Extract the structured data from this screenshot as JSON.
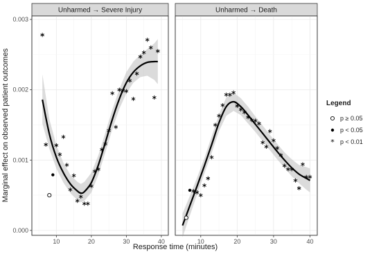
{
  "chart_data": {
    "type": "scatter",
    "xlabel": "Response time (minutes)",
    "ylabel": "Marginal effect on observed patient outcomes",
    "xlim": [
      3,
      42
    ],
    "ylim": [
      -7e-05,
      0.00305
    ],
    "x_ticks": [
      10,
      20,
      30,
      40
    ],
    "y_ticks": [
      0,
      0.001,
      0.002,
      0.003
    ],
    "y_tick_labels": [
      "0.000",
      "0.001",
      "0.002",
      "0.003"
    ],
    "grid": true,
    "legend": {
      "title": "Legend",
      "position": "right",
      "entries": [
        {
          "label": "p ≥ 0.05",
          "marker": "open-circle"
        },
        {
          "label": "p < 0.05",
          "marker": "filled-circle"
        },
        {
          "label": "p < 0.01",
          "marker": "asterisk"
        }
      ]
    },
    "panels": [
      {
        "title": "Unharmed → Severe Injury",
        "points": [
          {
            "x": 6,
            "y": 0.00278,
            "sig": "p<0.01"
          },
          {
            "x": 7,
            "y": 0.00122,
            "sig": "p<0.01"
          },
          {
            "x": 8,
            "y": 0.0005,
            "sig": "p>=0.05"
          },
          {
            "x": 9,
            "y": 0.00079,
            "sig": "p<0.05"
          },
          {
            "x": 10,
            "y": 0.00121,
            "sig": "p<0.01"
          },
          {
            "x": 11,
            "y": 0.00108,
            "sig": "p<0.01"
          },
          {
            "x": 12,
            "y": 0.00133,
            "sig": "p<0.01"
          },
          {
            "x": 13,
            "y": 0.00093,
            "sig": "p<0.01"
          },
          {
            "x": 14,
            "y": 0.00058,
            "sig": "p<0.01"
          },
          {
            "x": 15,
            "y": 0.00078,
            "sig": "p<0.01"
          },
          {
            "x": 16,
            "y": 0.00042,
            "sig": "p<0.01"
          },
          {
            "x": 17,
            "y": 0.00048,
            "sig": "p<0.01"
          },
          {
            "x": 18,
            "y": 0.00038,
            "sig": "p<0.01"
          },
          {
            "x": 19,
            "y": 0.00038,
            "sig": "p<0.01"
          },
          {
            "x": 20,
            "y": 0.00063,
            "sig": "p<0.01"
          },
          {
            "x": 21,
            "y": 0.00084,
            "sig": "p<0.01"
          },
          {
            "x": 22,
            "y": 0.00087,
            "sig": "p<0.01"
          },
          {
            "x": 23,
            "y": 0.00115,
            "sig": "p<0.01"
          },
          {
            "x": 24,
            "y": 0.00123,
            "sig": "p<0.01"
          },
          {
            "x": 25,
            "y": 0.00142,
            "sig": "p<0.01"
          },
          {
            "x": 26,
            "y": 0.00195,
            "sig": "p<0.01"
          },
          {
            "x": 27,
            "y": 0.00147,
            "sig": "p<0.01"
          },
          {
            "x": 28,
            "y": 0.002,
            "sig": "p<0.01"
          },
          {
            "x": 29,
            "y": 0.00199,
            "sig": "p<0.01"
          },
          {
            "x": 30,
            "y": 0.00198,
            "sig": "p<0.01"
          },
          {
            "x": 31,
            "y": 0.00213,
            "sig": "p<0.01"
          },
          {
            "x": 32,
            "y": 0.00187,
            "sig": "p<0.01"
          },
          {
            "x": 33,
            "y": 0.00223,
            "sig": "p<0.01"
          },
          {
            "x": 34,
            "y": 0.00247,
            "sig": "p<0.01"
          },
          {
            "x": 35,
            "y": 0.00253,
            "sig": "p<0.01"
          },
          {
            "x": 36,
            "y": 0.00271,
            "sig": "p<0.01"
          },
          {
            "x": 37,
            "y": 0.0026,
            "sig": "p<0.01"
          },
          {
            "x": 38,
            "y": 0.00189,
            "sig": "p<0.01"
          },
          {
            "x": 39,
            "y": 0.00255,
            "sig": "p<0.01"
          }
        ],
        "fit": [
          {
            "x": 6,
            "y": 0.00186,
            "lo": 0.00152,
            "hi": 0.00222
          },
          {
            "x": 8,
            "y": 0.00137,
            "lo": 0.00116,
            "hi": 0.00158
          },
          {
            "x": 10,
            "y": 0.00104,
            "lo": 0.00088,
            "hi": 0.00121
          },
          {
            "x": 12,
            "y": 0.00082,
            "lo": 0.00068,
            "hi": 0.00096
          },
          {
            "x": 14,
            "y": 0.00066,
            "lo": 0.00053,
            "hi": 0.00079
          },
          {
            "x": 16,
            "y": 0.00056,
            "lo": 0.00043,
            "hi": 0.00069
          },
          {
            "x": 17,
            "y": 0.00053,
            "lo": 0.0004,
            "hi": 0.00066
          },
          {
            "x": 18,
            "y": 0.00055,
            "lo": 0.00042,
            "hi": 0.00069
          },
          {
            "x": 20,
            "y": 0.00068,
            "lo": 0.00054,
            "hi": 0.00082
          },
          {
            "x": 22,
            "y": 0.00093,
            "lo": 0.00079,
            "hi": 0.00107
          },
          {
            "x": 24,
            "y": 0.00125,
            "lo": 0.00111,
            "hi": 0.00139
          },
          {
            "x": 26,
            "y": 0.00158,
            "lo": 0.00144,
            "hi": 0.00172
          },
          {
            "x": 28,
            "y": 0.00187,
            "lo": 0.00173,
            "hi": 0.00201
          },
          {
            "x": 30,
            "y": 0.0021,
            "lo": 0.00195,
            "hi": 0.00225
          },
          {
            "x": 32,
            "y": 0.00225,
            "lo": 0.0021,
            "hi": 0.0024
          },
          {
            "x": 34,
            "y": 0.00234,
            "lo": 0.00218,
            "hi": 0.0025
          },
          {
            "x": 36,
            "y": 0.00239,
            "lo": 0.0022,
            "hi": 0.00258
          },
          {
            "x": 38,
            "y": 0.0024,
            "lo": 0.00214,
            "hi": 0.00266
          },
          {
            "x": 39,
            "y": 0.0024,
            "lo": 0.00208,
            "hi": 0.00272
          }
        ]
      },
      {
        "title": "Unharmed → Death",
        "points": [
          {
            "x": 6,
            "y": 0.00018,
            "sig": "p>=0.05"
          },
          {
            "x": 7,
            "y": 0.00057,
            "sig": "p<0.05"
          },
          {
            "x": 8,
            "y": 0.00056,
            "sig": "p<0.01"
          },
          {
            "x": 9,
            "y": 0.00054,
            "sig": "p<0.01"
          },
          {
            "x": 10,
            "y": 0.0005,
            "sig": "p<0.01"
          },
          {
            "x": 11,
            "y": 0.00064,
            "sig": "p<0.01"
          },
          {
            "x": 12,
            "y": 0.00074,
            "sig": "p<0.01"
          },
          {
            "x": 13,
            "y": 0.00104,
            "sig": "p<0.01"
          },
          {
            "x": 14,
            "y": 0.0015,
            "sig": "p<0.01"
          },
          {
            "x": 15,
            "y": 0.00163,
            "sig": "p<0.01"
          },
          {
            "x": 16,
            "y": 0.00178,
            "sig": "p<0.01"
          },
          {
            "x": 17,
            "y": 0.00193,
            "sig": "p<0.01"
          },
          {
            "x": 18,
            "y": 0.00193,
            "sig": "p<0.01"
          },
          {
            "x": 19,
            "y": 0.00196,
            "sig": "p<0.01"
          },
          {
            "x": 20,
            "y": 0.00177,
            "sig": "p<0.01"
          },
          {
            "x": 21,
            "y": 0.00172,
            "sig": "p<0.01"
          },
          {
            "x": 22,
            "y": 0.00168,
            "sig": "p<0.01"
          },
          {
            "x": 23,
            "y": 0.00161,
            "sig": "p<0.01"
          },
          {
            "x": 24,
            "y": 0.00157,
            "sig": "p<0.01"
          },
          {
            "x": 25,
            "y": 0.00156,
            "sig": "p<0.01"
          },
          {
            "x": 26,
            "y": 0.00152,
            "sig": "p<0.01"
          },
          {
            "x": 27,
            "y": 0.00125,
            "sig": "p<0.01"
          },
          {
            "x": 28,
            "y": 0.00119,
            "sig": "p<0.01"
          },
          {
            "x": 29,
            "y": 0.00141,
            "sig": "p<0.01"
          },
          {
            "x": 30,
            "y": 0.00128,
            "sig": "p<0.01"
          },
          {
            "x": 31,
            "y": 0.00117,
            "sig": "p<0.01"
          },
          {
            "x": 32,
            "y": 0.00107,
            "sig": "p<0.01"
          },
          {
            "x": 33,
            "y": 0.00092,
            "sig": "p<0.01"
          },
          {
            "x": 34,
            "y": 0.00087,
            "sig": "p<0.01"
          },
          {
            "x": 35,
            "y": 0.00087,
            "sig": "p<0.01"
          },
          {
            "x": 36,
            "y": 0.00071,
            "sig": "p<0.01"
          },
          {
            "x": 37,
            "y": 0.0006,
            "sig": "p<0.01"
          },
          {
            "x": 38,
            "y": 0.00094,
            "sig": "p<0.01"
          },
          {
            "x": 39,
            "y": 0.00076,
            "sig": "p<0.01"
          },
          {
            "x": 40,
            "y": 0.00076,
            "sig": "p<0.01"
          }
        ],
        "fit": [
          {
            "x": 5,
            "y": 7e-05,
            "lo": -0.0001,
            "hi": 0.00024
          },
          {
            "x": 7,
            "y": 0.00035,
            "lo": 0.00021,
            "hi": 0.00049
          },
          {
            "x": 9,
            "y": 0.00063,
            "lo": 0.00051,
            "hi": 0.00075
          },
          {
            "x": 11,
            "y": 0.00092,
            "lo": 0.00081,
            "hi": 0.00103
          },
          {
            "x": 13,
            "y": 0.00122,
            "lo": 0.0011,
            "hi": 0.00134
          },
          {
            "x": 15,
            "y": 0.00153,
            "lo": 0.00141,
            "hi": 0.00165
          },
          {
            "x": 17,
            "y": 0.00176,
            "lo": 0.00163,
            "hi": 0.00189
          },
          {
            "x": 19,
            "y": 0.00183,
            "lo": 0.0017,
            "hi": 0.00196
          },
          {
            "x": 21,
            "y": 0.00176,
            "lo": 0.00164,
            "hi": 0.00188
          },
          {
            "x": 23,
            "y": 0.00164,
            "lo": 0.00152,
            "hi": 0.00176
          },
          {
            "x": 25,
            "y": 0.00151,
            "lo": 0.0014,
            "hi": 0.00162
          },
          {
            "x": 27,
            "y": 0.00138,
            "lo": 0.00127,
            "hi": 0.00149
          },
          {
            "x": 29,
            "y": 0.00125,
            "lo": 0.00114,
            "hi": 0.00136
          },
          {
            "x": 31,
            "y": 0.00112,
            "lo": 0.00101,
            "hi": 0.00123
          },
          {
            "x": 33,
            "y": 0.001,
            "lo": 0.00089,
            "hi": 0.00111
          },
          {
            "x": 35,
            "y": 0.00089,
            "lo": 0.00077,
            "hi": 0.00101
          },
          {
            "x": 37,
            "y": 0.0008,
            "lo": 0.00067,
            "hi": 0.00093
          },
          {
            "x": 39,
            "y": 0.00074,
            "lo": 0.00058,
            "hi": 0.0009
          },
          {
            "x": 40,
            "y": 0.00071,
            "lo": 0.00054,
            "hi": 0.00088
          }
        ]
      }
    ]
  }
}
